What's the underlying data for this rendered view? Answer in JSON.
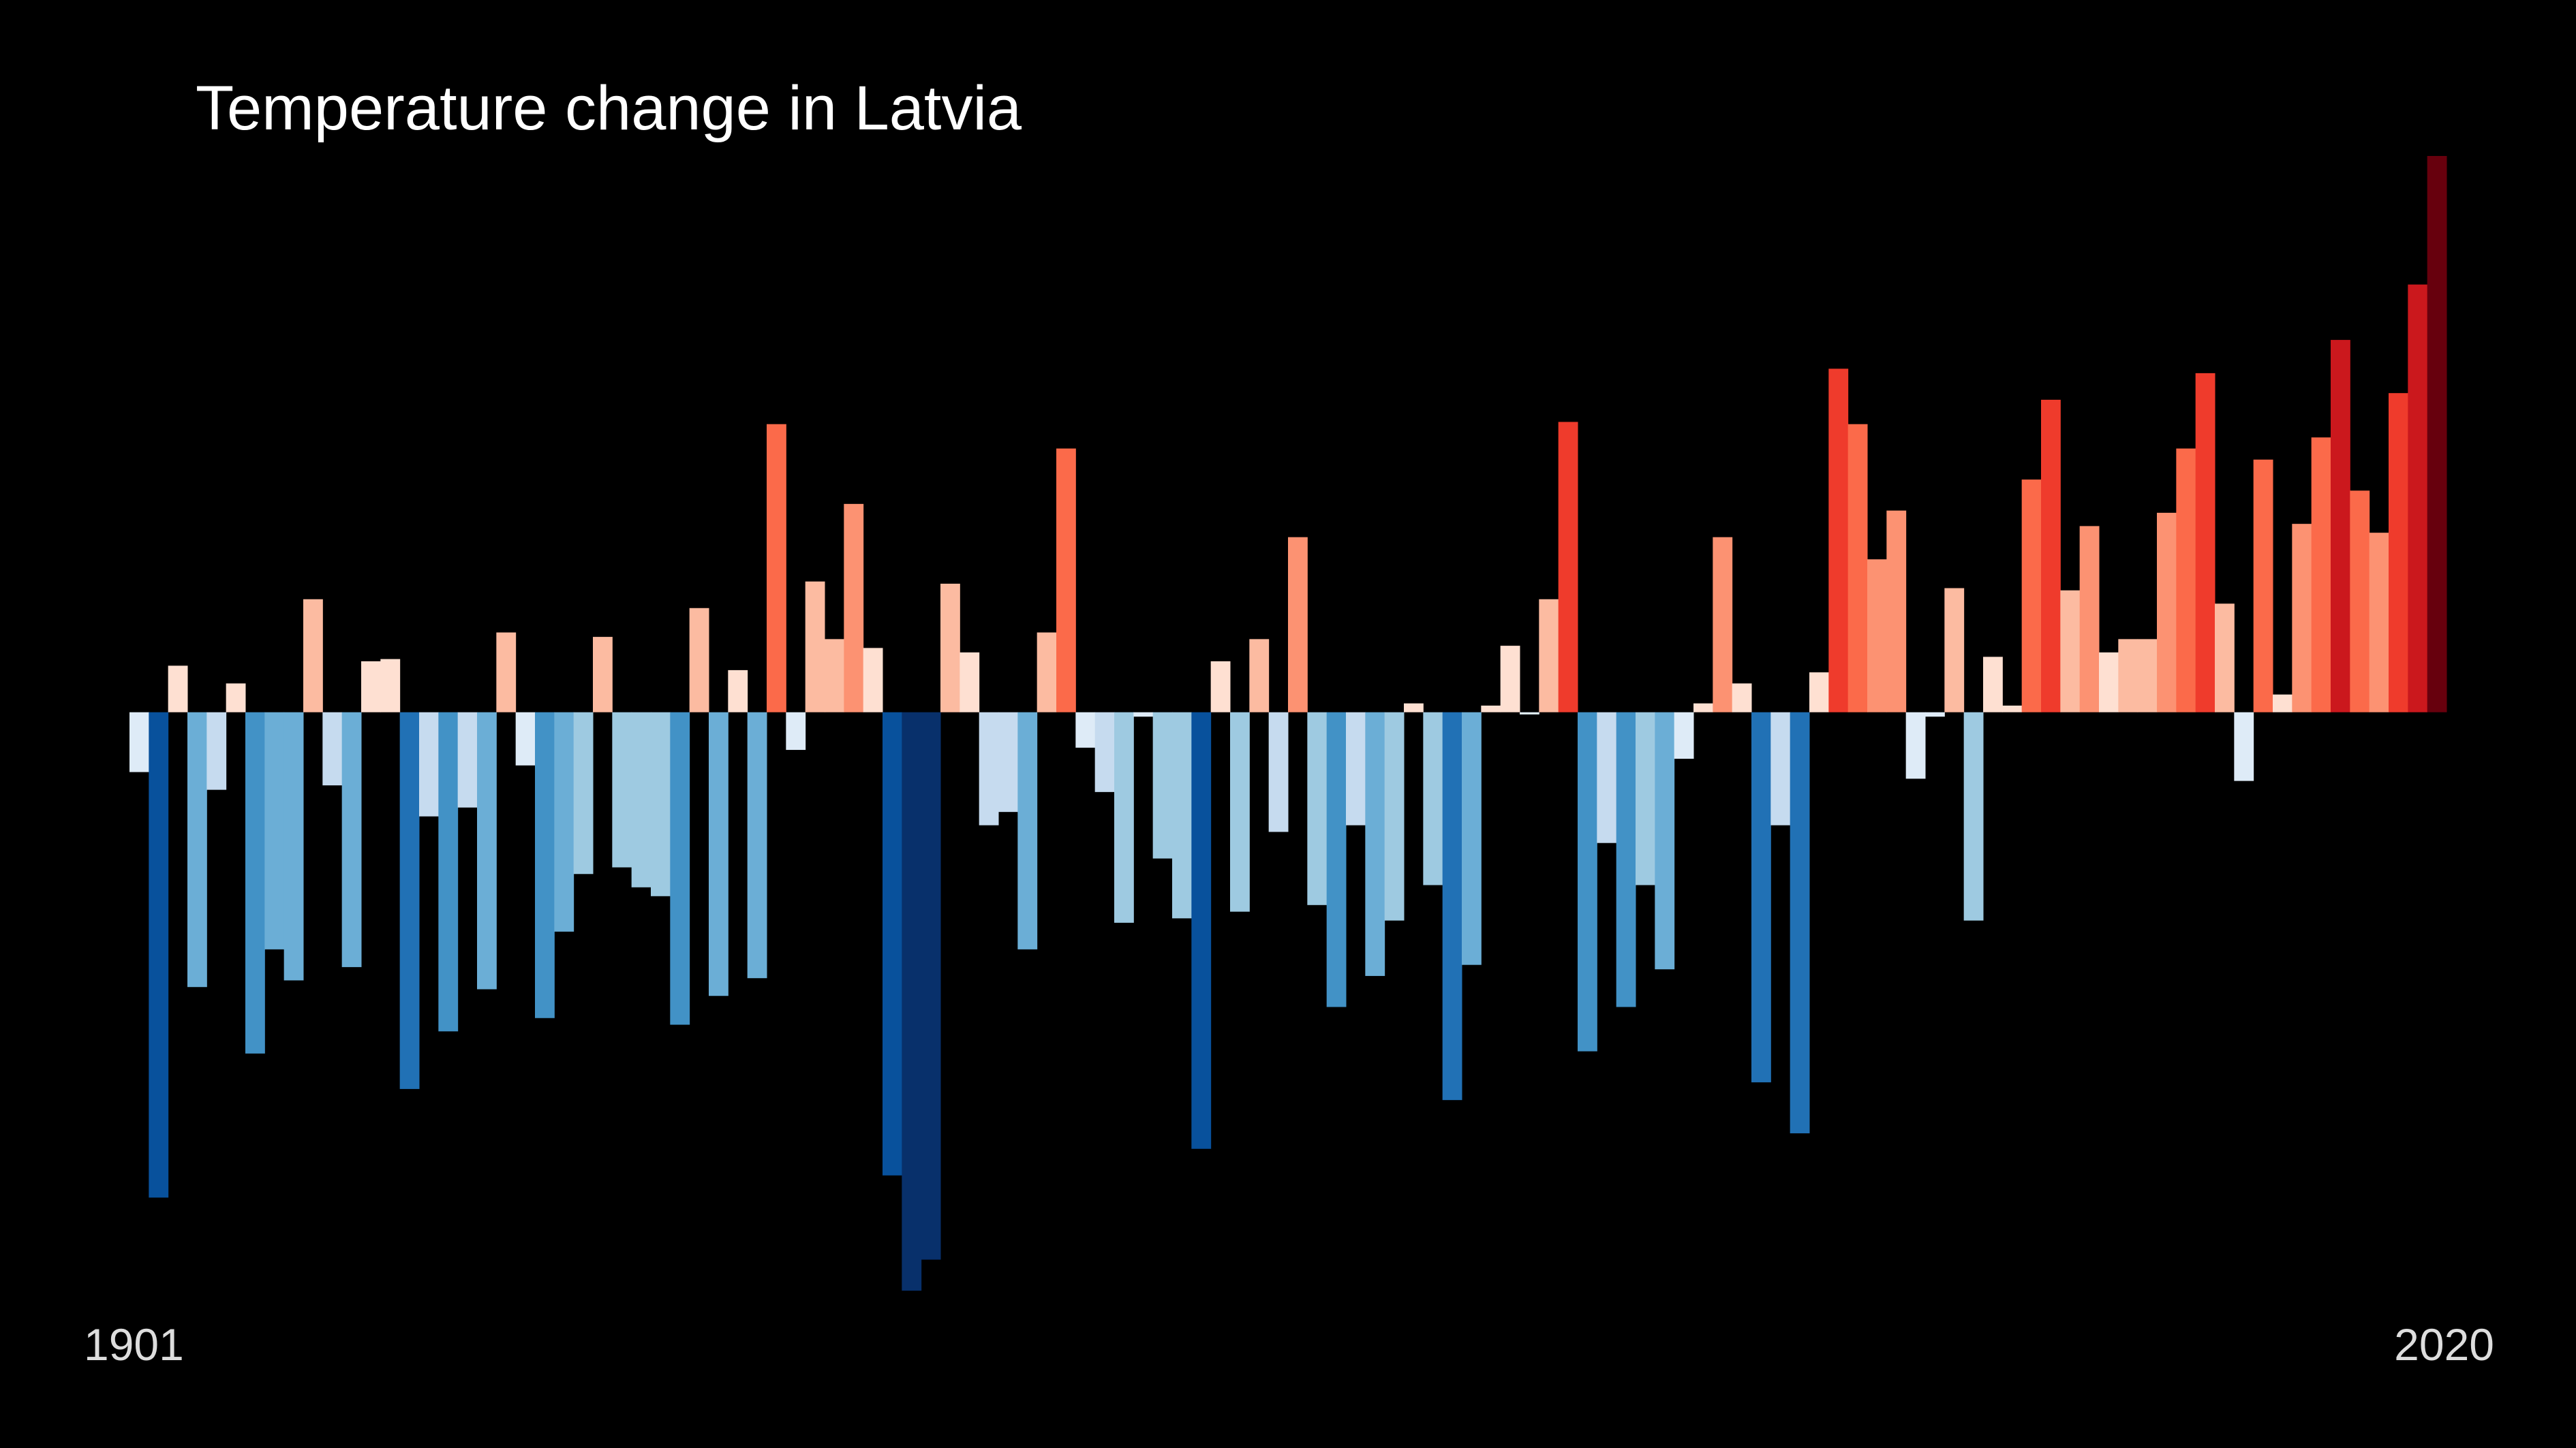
{
  "chart_data": {
    "type": "bar",
    "title": "Temperature change in Latvia",
    "categories": [
      "1901",
      null,
      null,
      null,
      null,
      null,
      null,
      null,
      null,
      null,
      null,
      null,
      null,
      null,
      null,
      null,
      null,
      null,
      null,
      null,
      null,
      null,
      null,
      null,
      null,
      null,
      null,
      null,
      null,
      null,
      null,
      null,
      null,
      null,
      null,
      null,
      null,
      null,
      null,
      null,
      null,
      null,
      null,
      null,
      null,
      null,
      null,
      null,
      null,
      null,
      null,
      null,
      null,
      null,
      null,
      null,
      null,
      null,
      null,
      null,
      null,
      null,
      null,
      null,
      null,
      null,
      null,
      null,
      null,
      null,
      null,
      null,
      null,
      null,
      null,
      null,
      null,
      null,
      null,
      null,
      null,
      null,
      null,
      null,
      null,
      null,
      null,
      null,
      null,
      null,
      null,
      null,
      null,
      null,
      null,
      null,
      null,
      null,
      null,
      null,
      null,
      null,
      null,
      null,
      null,
      null,
      null,
      null,
      null,
      null,
      null,
      null,
      null,
      null,
      null,
      null,
      null,
      null,
      null,
      "2020"
    ],
    "values": [
      -0.27,
      -2.19,
      0.21,
      -1.24,
      -0.35,
      0.13,
      -1.54,
      -1.07,
      -1.21,
      0.51,
      -0.33,
      -1.15,
      0.23,
      0.24,
      -1.7,
      -0.47,
      -1.44,
      -0.43,
      -1.25,
      0.36,
      -0.24,
      -1.38,
      -0.99,
      -0.73,
      0.34,
      -0.7,
      -0.79,
      -0.83,
      -1.41,
      0.47,
      -1.28,
      0.19,
      -1.2,
      1.3,
      -0.17,
      0.59,
      0.33,
      0.94,
      0.29,
      -2.09,
      -2.61,
      -2.47,
      0.58,
      0.27,
      -0.51,
      -0.45,
      -1.07,
      0.36,
      1.19,
      -0.16,
      -0.36,
      -0.95,
      -0.02,
      -0.66,
      -0.93,
      -1.97,
      0.23,
      -0.9,
      0.33,
      -0.54,
      0.79,
      -0.87,
      -1.33,
      -0.51,
      -1.19,
      -0.94,
      0.04,
      -0.78,
      -1.75,
      -1.14,
      0.03,
      0.3,
      -0.01,
      0.51,
      1.31,
      -1.53,
      -0.59,
      -1.33,
      -0.78,
      -1.16,
      -0.21,
      0.04,
      0.79,
      0.13,
      -1.67,
      -0.51,
      -1.9,
      0.18,
      1.55,
      1.3,
      0.69,
      0.91,
      -0.3,
      -0.02,
      0.56,
      -0.94,
      0.25,
      0.03,
      1.05,
      1.41,
      0.55,
      0.84,
      0.27,
      0.33,
      0.33,
      0.9,
      1.19,
      1.53,
      0.49,
      -0.31,
      1.14,
      0.08,
      0.85,
      1.24,
      1.68,
      1.0,
      0.81,
      1.44,
      1.93,
      2.51
    ],
    "color_scale": [
      "#08306b",
      "#08519c",
      "#2171b5",
      "#4292c6",
      "#6baed6",
      "#9ecae1",
      "#c6dbef",
      "#deebf7",
      "#fee0d2",
      "#fcbba1",
      "#fc9272",
      "#fb6a4a",
      "#ef3b2c",
      "#cb181d",
      "#a50f15",
      "#67000d"
    ]
  }
}
